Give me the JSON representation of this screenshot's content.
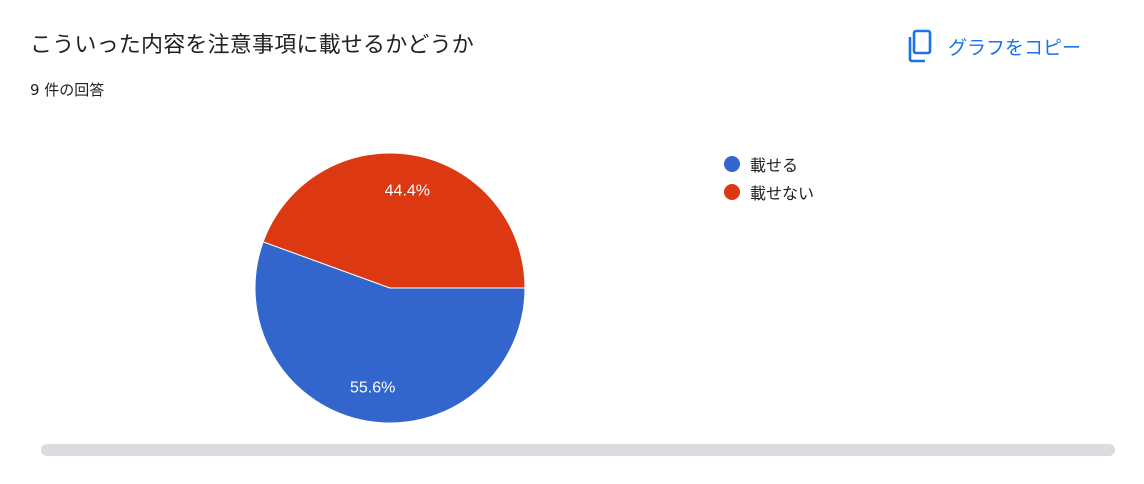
{
  "header": {
    "title": "こういった内容を注意事項に載せるかどうか",
    "response_count": "9 件の回答",
    "copy_label": "グラフをコピー",
    "copy_icon": "copy-icon"
  },
  "colors": {
    "accent": "#1a73e8",
    "series": [
      "#3366cc",
      "#dc3912"
    ]
  },
  "chart_data": {
    "type": "pie",
    "title": "",
    "categories": [
      "載せる",
      "載せない"
    ],
    "values": [
      5,
      4
    ],
    "percent_labels": [
      "55.6%",
      "44.4%"
    ],
    "legend_position": "right"
  }
}
